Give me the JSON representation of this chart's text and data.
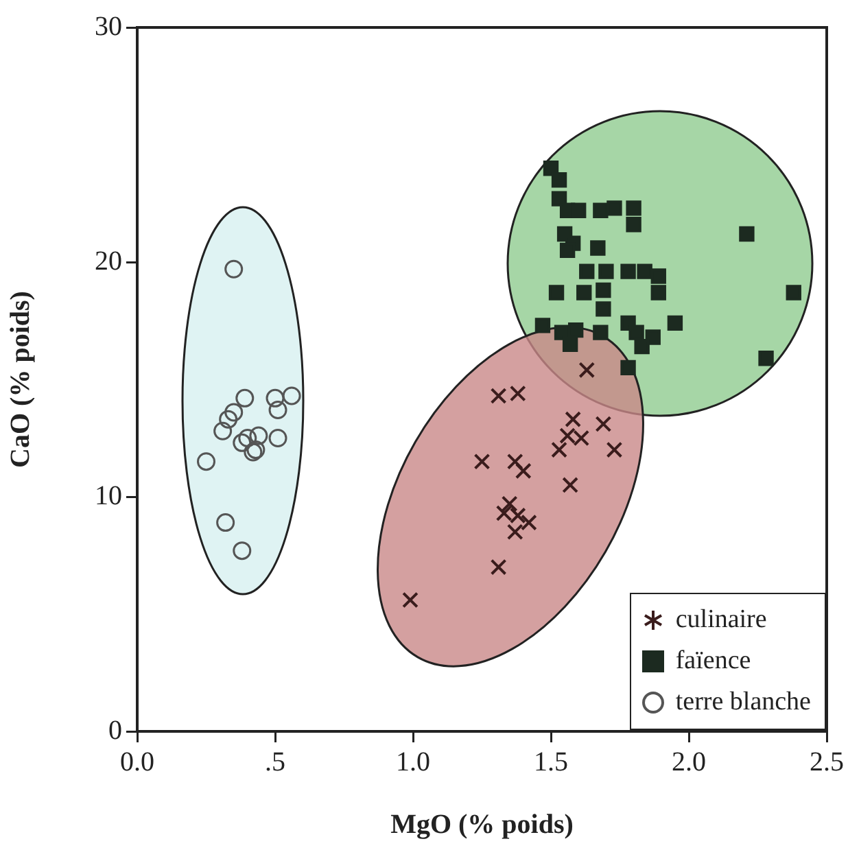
{
  "chart_data": {
    "type": "scatter",
    "xlabel": "MgO (% poids)",
    "ylabel": "CaO (% poids)",
    "xlim": [
      0,
      2.5
    ],
    "ylim": [
      0,
      30
    ],
    "xticks": [
      {
        "value": 0,
        "label": "0.0"
      },
      {
        "value": 0.5,
        "label": ".5"
      },
      {
        "value": 1,
        "label": "1.0"
      },
      {
        "value": 1.5,
        "label": "1.5"
      },
      {
        "value": 2,
        "label": "2.0"
      },
      {
        "value": 2.5,
        "label": "2.5"
      }
    ],
    "yticks": [
      0,
      10,
      20,
      30
    ],
    "grid": false,
    "legend": "bottom right",
    "series": [
      {
        "name": "culinaire",
        "color": "#3a1c1c",
        "marker": "cross",
        "x": [
          1.63,
          1.31,
          1.38,
          1.58,
          1.69,
          1.56,
          1.61,
          1.53,
          1.73,
          1.25,
          1.37,
          1.4,
          1.57,
          1.35,
          1.33,
          1.38,
          1.42,
          1.37,
          1.31,
          0.99
        ],
        "values": [
          15.4,
          14.3,
          14.4,
          13.3,
          13.1,
          12.6,
          12.5,
          12.0,
          12.0,
          11.5,
          11.5,
          11.1,
          10.5,
          9.7,
          9.3,
          9.2,
          8.9,
          8.5,
          7.0,
          5.6
        ]
      },
      {
        "name": "faïence",
        "color": "#1c2a20",
        "marker": "square",
        "x": [
          1.5,
          1.53,
          1.53,
          1.56,
          1.6,
          1.68,
          1.73,
          1.8,
          1.8,
          1.55,
          1.58,
          1.56,
          1.67,
          2.21,
          1.63,
          1.7,
          1.78,
          1.84,
          1.89,
          1.62,
          1.69,
          1.89,
          1.52,
          1.69,
          2.38,
          1.47,
          1.54,
          1.59,
          1.57,
          1.68,
          1.78,
          1.81,
          1.87,
          1.83,
          1.95,
          2.28,
          1.78
        ],
        "values": [
          24.0,
          23.5,
          22.7,
          22.2,
          22.2,
          22.2,
          22.3,
          22.3,
          21.6,
          21.2,
          20.8,
          20.5,
          20.6,
          21.2,
          19.6,
          19.6,
          19.6,
          19.6,
          19.4,
          18.7,
          18.8,
          18.7,
          18.7,
          18.0,
          18.7,
          17.3,
          17.0,
          17.1,
          16.5,
          17.0,
          17.4,
          17.0,
          16.8,
          16.4,
          17.4,
          15.9,
          15.5
        ]
      },
      {
        "name": "terre blanche",
        "color": "#555555",
        "marker": "circle",
        "x": [
          0.35,
          0.25,
          0.32,
          0.38,
          0.31,
          0.33,
          0.35,
          0.39,
          0.38,
          0.4,
          0.43,
          0.44,
          0.42,
          0.5,
          0.56,
          0.51,
          0.51
        ],
        "values": [
          19.7,
          11.5,
          8.9,
          7.7,
          12.8,
          13.3,
          13.6,
          14.2,
          12.3,
          12.5,
          12.0,
          12.6,
          11.9,
          14.2,
          14.3,
          13.7,
          12.5
        ]
      }
    ]
  }
}
